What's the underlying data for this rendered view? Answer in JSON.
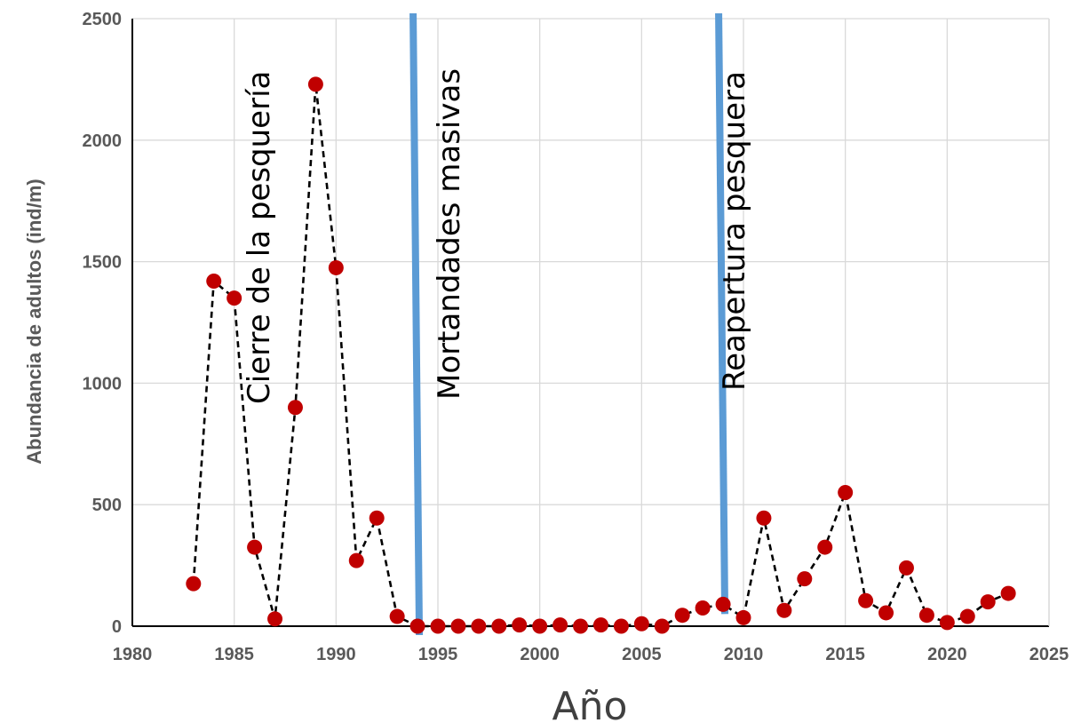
{
  "chart_data": {
    "type": "line",
    "xlabel": "Año",
    "ylabel": "Abundancia de adultos (ind/m)",
    "xlim": [
      1980,
      2025
    ],
    "ylim": [
      0,
      2500
    ],
    "xticks": [
      1980,
      1985,
      1990,
      1995,
      2000,
      2005,
      2010,
      2015,
      2020,
      2025
    ],
    "yticks": [
      0,
      500,
      1000,
      1500,
      2000,
      2500
    ],
    "grid": true,
    "series": [
      {
        "x": [
          1983,
          1984,
          1985,
          1986,
          1987,
          1988,
          1989,
          1990,
          1991,
          1992,
          1993,
          1994,
          1995,
          1996,
          1997,
          1998,
          1999,
          2000,
          2001,
          2002,
          2003,
          2004,
          2005,
          2006,
          2007,
          2008,
          2009,
          2010,
          2011,
          2012,
          2013,
          2014,
          2015,
          2016,
          2017,
          2018,
          2019,
          2020,
          2021,
          2022,
          2023
        ],
        "y": [
          175,
          1420,
          1350,
          325,
          30,
          900,
          2230,
          1475,
          270,
          445,
          40,
          0,
          0,
          0,
          0,
          0,
          5,
          0,
          5,
          0,
          5,
          0,
          10,
          0,
          45,
          75,
          90,
          35,
          445,
          65,
          195,
          325,
          550,
          105,
          55,
          240,
          45,
          15,
          40,
          100,
          135
        ]
      }
    ],
    "vertical_lines": [
      {
        "x": 1994,
        "label": "Mortandades masivas"
      },
      {
        "x": 2009,
        "label": "Reapertura pesquera"
      }
    ],
    "annotations": [
      {
        "x": 1987,
        "label": "Cierre de la pesquería"
      }
    ],
    "colors": {
      "marker": "#c00000",
      "line": "#000000",
      "vline": "#5b9bd5",
      "grid": "#d9d9d9",
      "ticks": "#595959"
    }
  }
}
